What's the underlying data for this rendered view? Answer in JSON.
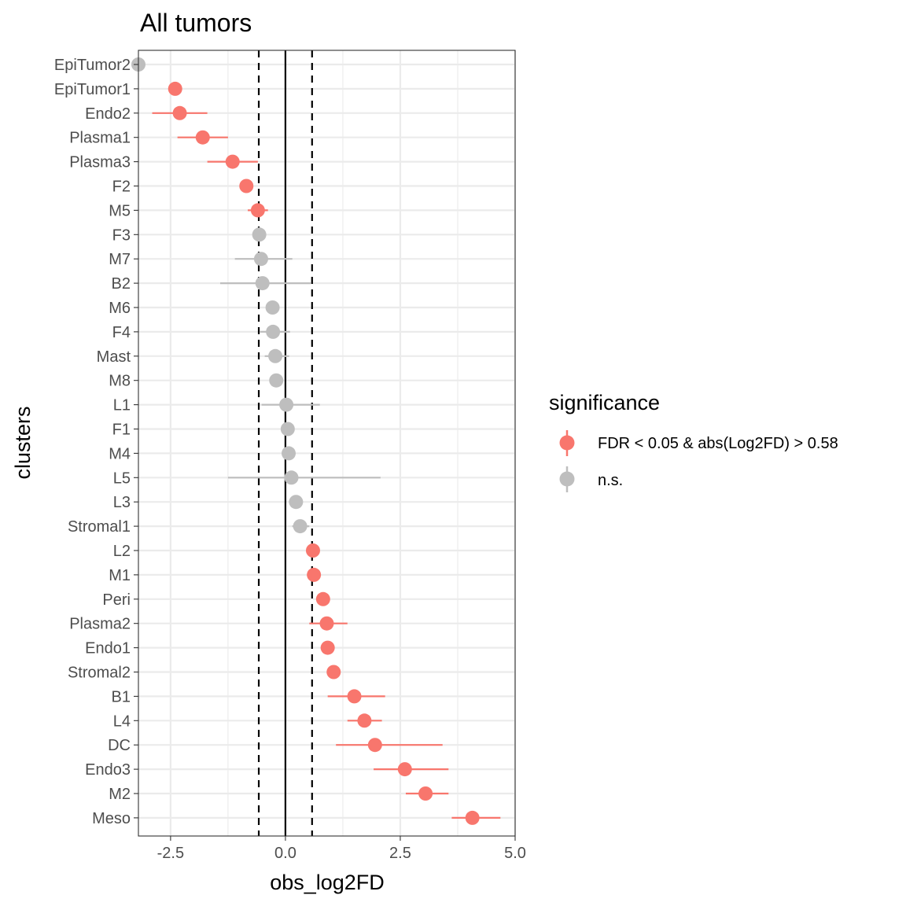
{
  "chart_data": {
    "type": "scatter",
    "title": "All tumors",
    "xlabel": "obs_log2FD",
    "ylabel": "clusters",
    "xlim": [
      -3.2,
      5.0
    ],
    "xticks": [
      -2.5,
      0.0,
      2.5,
      5.0
    ],
    "xtick_labels": [
      "-2.5",
      "0.0",
      "2.5",
      "5.0"
    ],
    "reference_lines": {
      "solid": 0,
      "dashed": [
        -0.58,
        0.58
      ]
    },
    "grid": true,
    "legend": {
      "title": "significance",
      "position": "right",
      "entries": [
        {
          "label": "FDR < 0.05 & abs(Log2FD) > 0.58",
          "color": "#F8766D"
        },
        {
          "label": "n.s.",
          "color": "#BEBEBE"
        }
      ]
    },
    "categories": [
      "EpiTumor2",
      "EpiTumor1",
      "Endo2",
      "Plasma1",
      "Plasma3",
      "F2",
      "M5",
      "F3",
      "M7",
      "B2",
      "M6",
      "F4",
      "Mast",
      "M8",
      "L1",
      "F1",
      "M4",
      "L5",
      "L3",
      "Stromal1",
      "L2",
      "M1",
      "Peri",
      "Plasma2",
      "Endo1",
      "Stromal2",
      "B1",
      "L4",
      "DC",
      "Endo3",
      "M2",
      "Meso"
    ],
    "points": [
      {
        "cluster": "EpiTumor2",
        "x": -3.2,
        "lo": null,
        "hi": null,
        "sig": "n.s."
      },
      {
        "cluster": "EpiTumor1",
        "x": -2.4,
        "lo": null,
        "hi": null,
        "sig": "FDR < 0.05 & abs(Log2FD) > 0.58"
      },
      {
        "cluster": "Endo2",
        "x": -2.3,
        "lo": -2.9,
        "hi": -1.7,
        "sig": "FDR < 0.05 & abs(Log2FD) > 0.58"
      },
      {
        "cluster": "Plasma1",
        "x": -1.8,
        "lo": -2.35,
        "hi": -1.25,
        "sig": "FDR < 0.05 & abs(Log2FD) > 0.58"
      },
      {
        "cluster": "Plasma3",
        "x": -1.15,
        "lo": -1.7,
        "hi": -0.6,
        "sig": "FDR < 0.05 & abs(Log2FD) > 0.58"
      },
      {
        "cluster": "F2",
        "x": -0.85,
        "lo": null,
        "hi": null,
        "sig": "FDR < 0.05 & abs(Log2FD) > 0.58"
      },
      {
        "cluster": "M5",
        "x": -0.6,
        "lo": -0.82,
        "hi": -0.38,
        "sig": "FDR < 0.05 & abs(Log2FD) > 0.58"
      },
      {
        "cluster": "F3",
        "x": -0.57,
        "lo": null,
        "hi": null,
        "sig": "n.s."
      },
      {
        "cluster": "M7",
        "x": -0.53,
        "lo": -1.1,
        "hi": 0.15,
        "sig": "n.s."
      },
      {
        "cluster": "B2",
        "x": -0.5,
        "lo": -1.42,
        "hi": 0.55,
        "sig": "n.s."
      },
      {
        "cluster": "M6",
        "x": -0.28,
        "lo": null,
        "hi": null,
        "sig": "n.s."
      },
      {
        "cluster": "F4",
        "x": -0.27,
        "lo": -0.55,
        "hi": 0.1,
        "sig": "n.s."
      },
      {
        "cluster": "Mast",
        "x": -0.22,
        "lo": -0.45,
        "hi": 0.08,
        "sig": "n.s."
      },
      {
        "cluster": "M8",
        "x": -0.2,
        "lo": null,
        "hi": null,
        "sig": "n.s."
      },
      {
        "cluster": "L1",
        "x": 0.02,
        "lo": -0.52,
        "hi": 0.75,
        "sig": "n.s."
      },
      {
        "cluster": "F1",
        "x": 0.05,
        "lo": null,
        "hi": null,
        "sig": "n.s."
      },
      {
        "cluster": "M4",
        "x": 0.07,
        "lo": null,
        "hi": null,
        "sig": "n.s."
      },
      {
        "cluster": "L5",
        "x": 0.13,
        "lo": -1.25,
        "hi": 2.07,
        "sig": "n.s."
      },
      {
        "cluster": "L3",
        "x": 0.23,
        "lo": null,
        "hi": null,
        "sig": "n.s."
      },
      {
        "cluster": "Stromal1",
        "x": 0.32,
        "lo": 0.15,
        "hi": 0.52,
        "sig": "n.s."
      },
      {
        "cluster": "L2",
        "x": 0.6,
        "lo": null,
        "hi": null,
        "sig": "FDR < 0.05 & abs(Log2FD) > 0.58"
      },
      {
        "cluster": "M1",
        "x": 0.62,
        "lo": null,
        "hi": null,
        "sig": "FDR < 0.05 & abs(Log2FD) > 0.58"
      },
      {
        "cluster": "Peri",
        "x": 0.82,
        "lo": null,
        "hi": null,
        "sig": "FDR < 0.05 & abs(Log2FD) > 0.58"
      },
      {
        "cluster": "Plasma2",
        "x": 0.9,
        "lo": 0.52,
        "hi": 1.35,
        "sig": "FDR < 0.05 & abs(Log2FD) > 0.58"
      },
      {
        "cluster": "Endo1",
        "x": 0.92,
        "lo": null,
        "hi": null,
        "sig": "FDR < 0.05 & abs(Log2FD) > 0.58"
      },
      {
        "cluster": "Stromal2",
        "x": 1.05,
        "lo": null,
        "hi": null,
        "sig": "FDR < 0.05 & abs(Log2FD) > 0.58"
      },
      {
        "cluster": "B1",
        "x": 1.5,
        "lo": 0.92,
        "hi": 2.17,
        "sig": "FDR < 0.05 & abs(Log2FD) > 0.58"
      },
      {
        "cluster": "L4",
        "x": 1.72,
        "lo": 1.35,
        "hi": 2.1,
        "sig": "FDR < 0.05 & abs(Log2FD) > 0.58"
      },
      {
        "cluster": "DC",
        "x": 1.95,
        "lo": 1.1,
        "hi": 3.42,
        "sig": "FDR < 0.05 & abs(Log2FD) > 0.58"
      },
      {
        "cluster": "Endo3",
        "x": 2.6,
        "lo": 1.92,
        "hi": 3.55,
        "sig": "FDR < 0.05 & abs(Log2FD) > 0.58"
      },
      {
        "cluster": "M2",
        "x": 3.05,
        "lo": 2.62,
        "hi": 3.55,
        "sig": "FDR < 0.05 & abs(Log2FD) > 0.58"
      },
      {
        "cluster": "Meso",
        "x": 4.07,
        "lo": 3.62,
        "hi": 4.68,
        "sig": "FDR < 0.05 & abs(Log2FD) > 0.58"
      }
    ]
  }
}
